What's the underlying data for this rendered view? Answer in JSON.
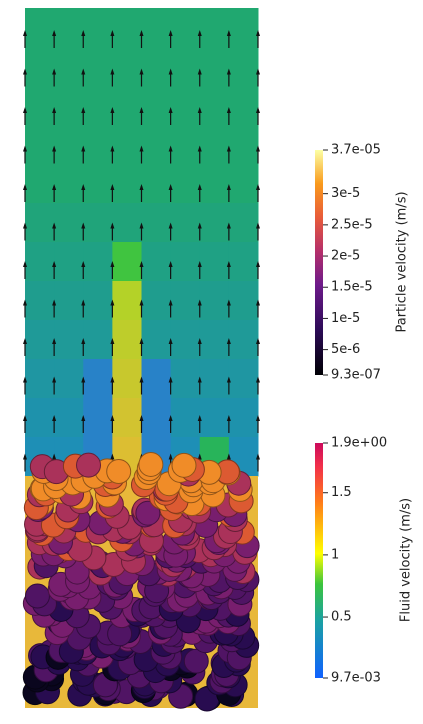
{
  "colorbars": [
    {
      "title": "Particle velocity (m/s)",
      "lim": [
        9.3e-07,
        3.7e-05
      ],
      "ticks": [
        {
          "value": 3.7e-05,
          "label": "3.7e-05"
        },
        {
          "value": 3e-05,
          "label": "3e-5"
        },
        {
          "value": 2.5e-05,
          "label": "2.5e-5"
        },
        {
          "value": 2e-05,
          "label": "2e-5"
        },
        {
          "value": 1.5e-05,
          "label": "1.5e-5"
        },
        {
          "value": 1e-05,
          "label": "1e-5"
        },
        {
          "value": 5e-06,
          "label": "5e-6"
        },
        {
          "value": 9.3e-07,
          "label": "9.3e-07"
        }
      ]
    },
    {
      "title": "Fluid velocity (m/s)",
      "lim": [
        0.0097,
        1.9
      ],
      "ticks": [
        {
          "value": 1.9,
          "label": "1.9e+00"
        },
        1.5,
        1,
        0.5,
        {
          "value": 0.0097,
          "label": "9.7e-03"
        }
      ]
    }
  ]
}
